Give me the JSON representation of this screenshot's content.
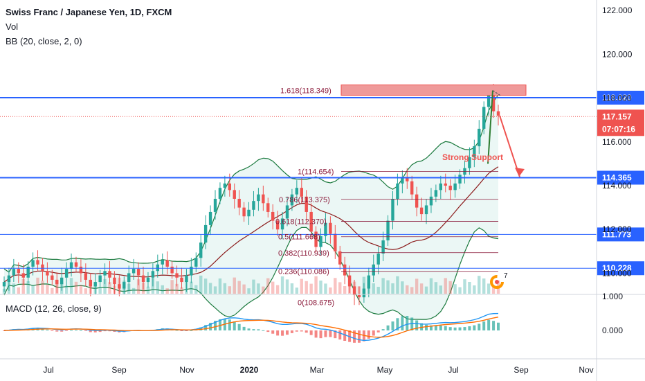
{
  "legend": {
    "title": "Swiss Franc / Japanese Yen, 1D, FXCM",
    "vol": "Vol",
    "bb": "BB (20, close, 2, 0)",
    "macd": "MACD (12, 26, close, 9)"
  },
  "colors": {
    "up": "#26a69a",
    "down": "#ef5350",
    "bb": "#1b7a3e",
    "bb_basis": "#8b1a1a",
    "bb_fill": "#e6f5f3",
    "hline": "#2962ff",
    "fib": "#8b1a3a",
    "macd": "#2196f3",
    "signal": "#ff6d00",
    "target": "#ef9a9a",
    "axis_blue": "#2962ff",
    "axis_red": "#ef5350"
  },
  "chart_data": {
    "type": "candlestick",
    "price_axis_ticks": [
      "122.000",
      "120.000",
      "118.000",
      "116.000",
      "114.000",
      "112.000",
      "110.000"
    ],
    "macd_axis_ticks": [
      "1.000",
      "0.000"
    ],
    "time_axis_labels": [
      "Jul",
      "Sep",
      "Nov",
      "2020",
      "Mar",
      "May",
      "Jul",
      "Sep",
      "Nov"
    ],
    "horizontal_levels": [
      {
        "price": 118.02,
        "label": "118.020",
        "style": "thick"
      },
      {
        "price": 114.365,
        "label": "114.365",
        "style": "thick"
      },
      {
        "price": 111.773,
        "label": "111.773",
        "style": "thin"
      },
      {
        "price": 110.228,
        "label": "110.228",
        "style": "thin"
      }
    ],
    "last_price": {
      "price": 117.157,
      "label": "117.157",
      "countdown": "07:07:16"
    },
    "fibonacci": [
      {
        "ratio": 1.618,
        "price": 118.349,
        "label": "1.618(118.349)"
      },
      {
        "ratio": 1,
        "price": 114.654,
        "label": "1(114.654)"
      },
      {
        "ratio": 0.786,
        "price": 113.375,
        "label": "0.786(113.375)"
      },
      {
        "ratio": 0.618,
        "price": 112.37,
        "label": "0.618(112.370)"
      },
      {
        "ratio": 0.5,
        "price": 111.668,
        "label": "0.5(111.668)"
      },
      {
        "ratio": 0.382,
        "price": 110.939,
        "label": "0.382(110.939)"
      },
      {
        "ratio": 0.236,
        "price": 110.086,
        "label": "0.236(110.086)"
      },
      {
        "ratio": 0,
        "price": 108.675,
        "label": "0(108.675)"
      }
    ],
    "annotations": {
      "strong_support": "Strong Support"
    },
    "close_series": [
      109.6,
      109.9,
      110.2,
      110.0,
      109.8,
      110.3,
      110.6,
      110.4,
      110.1,
      109.9,
      109.7,
      109.5,
      109.8,
      110.2,
      110.5,
      110.3,
      110.0,
      109.7,
      109.4,
      109.6,
      109.9,
      110.1,
      109.8,
      109.5,
      109.3,
      109.6,
      110.0,
      110.2,
      109.9,
      109.6,
      109.8,
      110.1,
      110.4,
      110.6,
      110.3,
      110.0,
      109.8,
      109.6,
      109.9,
      110.3,
      110.7,
      111.4,
      112.2,
      112.8,
      113.4,
      113.9,
      114.1,
      113.8,
      113.4,
      113.0,
      112.6,
      112.9,
      113.3,
      113.6,
      113.2,
      112.8,
      112.4,
      112.0,
      112.5,
      113.1,
      113.6,
      113.9,
      113.5,
      112.8,
      111.9,
      111.2,
      111.7,
      112.3,
      111.8,
      111.0,
      110.4,
      109.9,
      109.4,
      109.0,
      108.9,
      109.3,
      109.9,
      110.4,
      110.9,
      111.5,
      112.4,
      113.4,
      114.1,
      114.4,
      114.2,
      113.6,
      113.0,
      112.7,
      113.1,
      113.5,
      113.8,
      114.1,
      114.0,
      113.8,
      114.1,
      114.5,
      114.8,
      115.3,
      115.8,
      116.6,
      117.6,
      118.2,
      117.4,
      117.2
    ]
  }
}
